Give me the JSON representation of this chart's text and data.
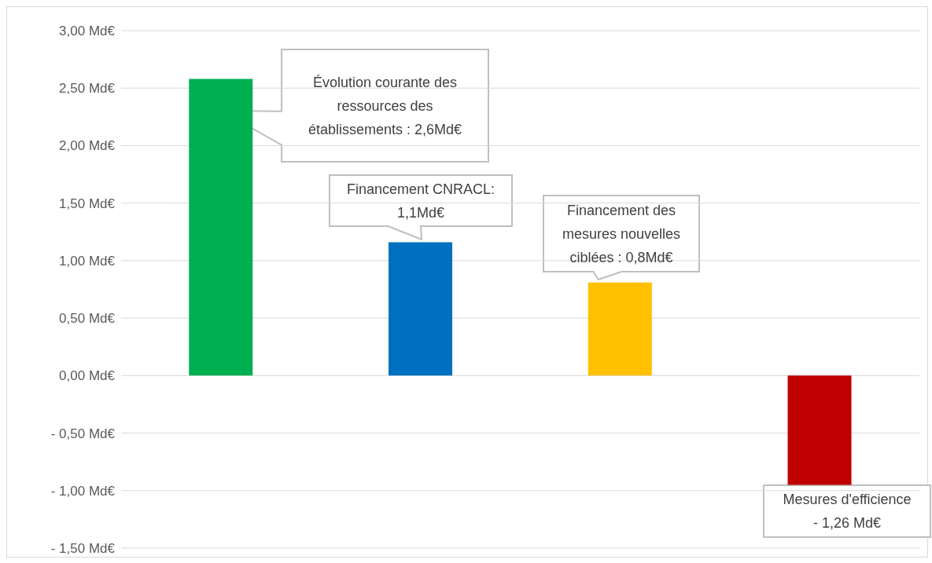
{
  "chart_data": {
    "type": "bar",
    "categories": [
      null,
      null,
      null,
      null
    ],
    "values": [
      2.58,
      1.16,
      0.81,
      -0.95
    ],
    "colors": [
      "#00b050",
      "#0070c0",
      "#ffc000",
      "#c00000"
    ],
    "ylim": [
      -1.5,
      3
    ],
    "yticks": [
      {
        "value": -1.5,
        "label": "- 1,50 Md€"
      },
      {
        "value": -1,
        "label": "- 1,00 Md€"
      },
      {
        "value": -0.5,
        "label": "- 0,50 Md€"
      },
      {
        "value": 0,
        "label": "0,00 Md€"
      },
      {
        "value": 0.5,
        "label": "0,50 Md€"
      },
      {
        "value": 1,
        "label": "1,00 Md€"
      },
      {
        "value": 1.5,
        "label": "1,50 Md€"
      },
      {
        "value": 2,
        "label": "2,00 Md€"
      },
      {
        "value": 2.5,
        "label": "2,50 Md€"
      },
      {
        "value": 3,
        "label": "3,00 Md€"
      }
    ],
    "grid": "y",
    "legend": false,
    "annotations": [
      "Évolution courante des ressources des établissements : 2,6Md€",
      "Financement CNRACL: 1,1Md€",
      "Financement des mesures nouvelles ciblées : 0,8Md€",
      "Mesures d'efficience - 1,26 Md€"
    ]
  }
}
